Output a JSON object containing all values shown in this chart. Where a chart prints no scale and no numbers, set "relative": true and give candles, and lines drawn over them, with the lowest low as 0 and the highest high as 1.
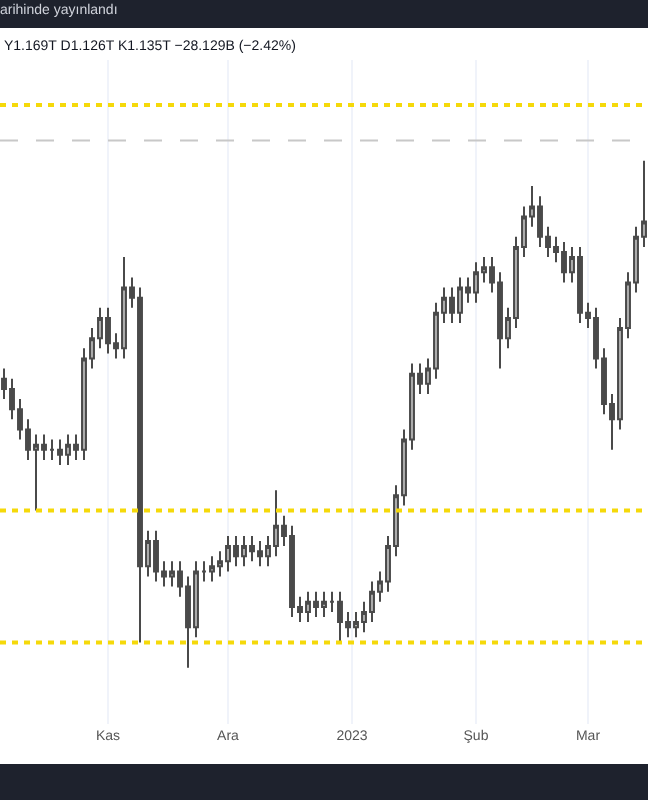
{
  "chart_data": {
    "type": "candlestick",
    "title": "arihinde yayınlandı",
    "annotations": [
      "Y1.169T D1.126T K1.135T −28.129B (−2.42%)"
    ],
    "relative": true,
    "x": [
      "2022-10-06",
      "2022-10-08",
      "2022-10-10",
      "2022-10-12",
      "2022-10-14",
      "2022-10-16",
      "2022-10-18",
      "2022-10-20",
      "2022-10-22",
      "2022-10-24",
      "2022-10-26",
      "2022-10-28",
      "2022-10-30",
      "2022-11-01",
      "2022-11-03",
      "2022-11-05",
      "2022-11-07",
      "2022-11-09",
      "2022-11-11",
      "2022-11-13",
      "2022-11-15",
      "2022-11-17",
      "2022-11-19",
      "2022-11-21",
      "2022-11-23",
      "2022-11-25",
      "2022-11-27",
      "2022-11-29",
      "2022-12-01",
      "2022-12-03",
      "2022-12-05",
      "2022-12-07",
      "2022-12-09",
      "2022-12-11",
      "2022-12-13",
      "2022-12-15",
      "2022-12-17",
      "2022-12-19",
      "2022-12-21",
      "2022-12-23",
      "2022-12-25",
      "2022-12-27",
      "2022-12-29",
      "2022-12-31",
      "2023-01-02",
      "2023-01-04",
      "2023-01-06",
      "2023-01-08",
      "2023-01-10",
      "2023-01-12",
      "2023-01-14",
      "2023-01-16",
      "2023-01-18",
      "2023-01-20",
      "2023-01-22",
      "2023-01-24",
      "2023-01-26",
      "2023-01-28",
      "2023-01-30",
      "2023-02-01",
      "2023-02-03",
      "2023-02-05",
      "2023-02-07",
      "2023-02-09",
      "2023-02-11",
      "2023-02-13",
      "2023-02-15",
      "2023-02-17",
      "2023-02-19",
      "2023-02-21",
      "2023-02-23",
      "2023-02-25",
      "2023-02-27",
      "2023-03-01",
      "2023-03-03",
      "2023-03-05",
      "2023-03-07",
      "2023-03-09",
      "2023-03-11",
      "2023-03-13",
      "2023-03-15"
    ],
    "series": [
      {
        "color": "#4a4a4a",
        "ohlc": [
          [
            0.57,
            0.59,
            0.53,
            0.55
          ],
          [
            0.55,
            0.57,
            0.49,
            0.51
          ],
          [
            0.51,
            0.53,
            0.45,
            0.47
          ],
          [
            0.47,
            0.49,
            0.41,
            0.43
          ],
          [
            0.43,
            0.46,
            0.31,
            0.44
          ],
          [
            0.44,
            0.46,
            0.41,
            0.43
          ],
          [
            0.43,
            0.45,
            0.41,
            0.43
          ],
          [
            0.43,
            0.45,
            0.4,
            0.42
          ],
          [
            0.42,
            0.46,
            0.4,
            0.44
          ],
          [
            0.44,
            0.46,
            0.41,
            0.43
          ],
          [
            0.43,
            0.63,
            0.41,
            0.61
          ],
          [
            0.61,
            0.67,
            0.59,
            0.65
          ],
          [
            0.65,
            0.71,
            0.63,
            0.69
          ],
          [
            0.69,
            0.71,
            0.62,
            0.64
          ],
          [
            0.64,
            0.66,
            0.61,
            0.63
          ],
          [
            0.63,
            0.81,
            0.61,
            0.75
          ],
          [
            0.75,
            0.77,
            0.71,
            0.73
          ],
          [
            0.73,
            0.75,
            0.05,
            0.2
          ],
          [
            0.2,
            0.27,
            0.18,
            0.25
          ],
          [
            0.25,
            0.27,
            0.17,
            0.19
          ],
          [
            0.19,
            0.21,
            0.16,
            0.18
          ],
          [
            0.18,
            0.21,
            0.16,
            0.19
          ],
          [
            0.19,
            0.21,
            0.14,
            0.16
          ],
          [
            0.16,
            0.18,
            0.0,
            0.08
          ],
          [
            0.08,
            0.21,
            0.06,
            0.19
          ],
          [
            0.19,
            0.21,
            0.17,
            0.19
          ],
          [
            0.19,
            0.22,
            0.17,
            0.2
          ],
          [
            0.2,
            0.23,
            0.18,
            0.21
          ],
          [
            0.21,
            0.26,
            0.19,
            0.24
          ],
          [
            0.24,
            0.26,
            0.2,
            0.22
          ],
          [
            0.22,
            0.26,
            0.2,
            0.24
          ],
          [
            0.24,
            0.26,
            0.21,
            0.23
          ],
          [
            0.23,
            0.25,
            0.2,
            0.22
          ],
          [
            0.22,
            0.26,
            0.2,
            0.24
          ],
          [
            0.24,
            0.35,
            0.22,
            0.28
          ],
          [
            0.28,
            0.3,
            0.24,
            0.26
          ],
          [
            0.26,
            0.28,
            0.1,
            0.12
          ],
          [
            0.12,
            0.14,
            0.09,
            0.11
          ],
          [
            0.11,
            0.15,
            0.09,
            0.13
          ],
          [
            0.13,
            0.15,
            0.1,
            0.12
          ],
          [
            0.12,
            0.15,
            0.1,
            0.13
          ],
          [
            0.13,
            0.15,
            0.11,
            0.13
          ],
          [
            0.13,
            0.15,
            0.05,
            0.09
          ],
          [
            0.09,
            0.11,
            0.06,
            0.08
          ],
          [
            0.08,
            0.11,
            0.06,
            0.09
          ],
          [
            0.09,
            0.13,
            0.07,
            0.11
          ],
          [
            0.11,
            0.17,
            0.09,
            0.15
          ],
          [
            0.15,
            0.19,
            0.13,
            0.17
          ],
          [
            0.17,
            0.26,
            0.15,
            0.24
          ],
          [
            0.24,
            0.36,
            0.22,
            0.34
          ],
          [
            0.34,
            0.47,
            0.32,
            0.45
          ],
          [
            0.45,
            0.6,
            0.43,
            0.58
          ],
          [
            0.58,
            0.6,
            0.54,
            0.56
          ],
          [
            0.56,
            0.61,
            0.54,
            0.59
          ],
          [
            0.59,
            0.72,
            0.57,
            0.7
          ],
          [
            0.7,
            0.75,
            0.68,
            0.73
          ],
          [
            0.73,
            0.75,
            0.68,
            0.7
          ],
          [
            0.7,
            0.77,
            0.68,
            0.75
          ],
          [
            0.75,
            0.77,
            0.72,
            0.74
          ],
          [
            0.74,
            0.8,
            0.72,
            0.78
          ],
          [
            0.78,
            0.81,
            0.76,
            0.79
          ],
          [
            0.79,
            0.81,
            0.74,
            0.76
          ],
          [
            0.76,
            0.78,
            0.59,
            0.65
          ],
          [
            0.65,
            0.71,
            0.63,
            0.69
          ],
          [
            0.69,
            0.85,
            0.67,
            0.83
          ],
          [
            0.83,
            0.91,
            0.81,
            0.89
          ],
          [
            0.89,
            0.95,
            0.87,
            0.91
          ],
          [
            0.91,
            0.93,
            0.83,
            0.85
          ],
          [
            0.85,
            0.87,
            0.81,
            0.83
          ],
          [
            0.83,
            0.85,
            0.8,
            0.82
          ],
          [
            0.82,
            0.84,
            0.76,
            0.78
          ],
          [
            0.78,
            0.83,
            0.76,
            0.81
          ],
          [
            0.81,
            0.83,
            0.68,
            0.7
          ],
          [
            0.7,
            0.72,
            0.67,
            0.69
          ],
          [
            0.69,
            0.71,
            0.59,
            0.61
          ],
          [
            0.61,
            0.63,
            0.5,
            0.52
          ],
          [
            0.52,
            0.54,
            0.43,
            0.49
          ],
          [
            0.49,
            0.69,
            0.47,
            0.67
          ],
          [
            0.67,
            0.78,
            0.65,
            0.76
          ],
          [
            0.76,
            0.87,
            0.74,
            0.85
          ],
          [
            0.85,
            1.0,
            0.83,
            0.88
          ]
        ]
      }
    ],
    "xlim": [
      "2022-10-05",
      "2023-03-16"
    ],
    "xticks": [
      {
        "value": "2022-11-01",
        "label": "Kas"
      },
      {
        "value": "2022-12-01",
        "label": "Ara"
      },
      {
        "value": "2023-01-01",
        "label": "2023"
      },
      {
        "value": "2023-02-01",
        "label": "Şub"
      },
      {
        "value": "2023-03-01",
        "label": "Mar"
      }
    ],
    "ref_lines": [
      {
        "axis": "y",
        "value": 1.11,
        "color": "#f5d90a",
        "line_style": "dotted"
      },
      {
        "axis": "y",
        "value": 1.04,
        "color": "#c8c8c8",
        "line_style": "dashed"
      },
      {
        "axis": "y",
        "value": 0.31,
        "color": "#f5d90a",
        "line_style": "dotted"
      },
      {
        "axis": "y",
        "value": 0.05,
        "color": "#f5d90a",
        "line_style": "dotted"
      }
    ],
    "grid": "x"
  }
}
